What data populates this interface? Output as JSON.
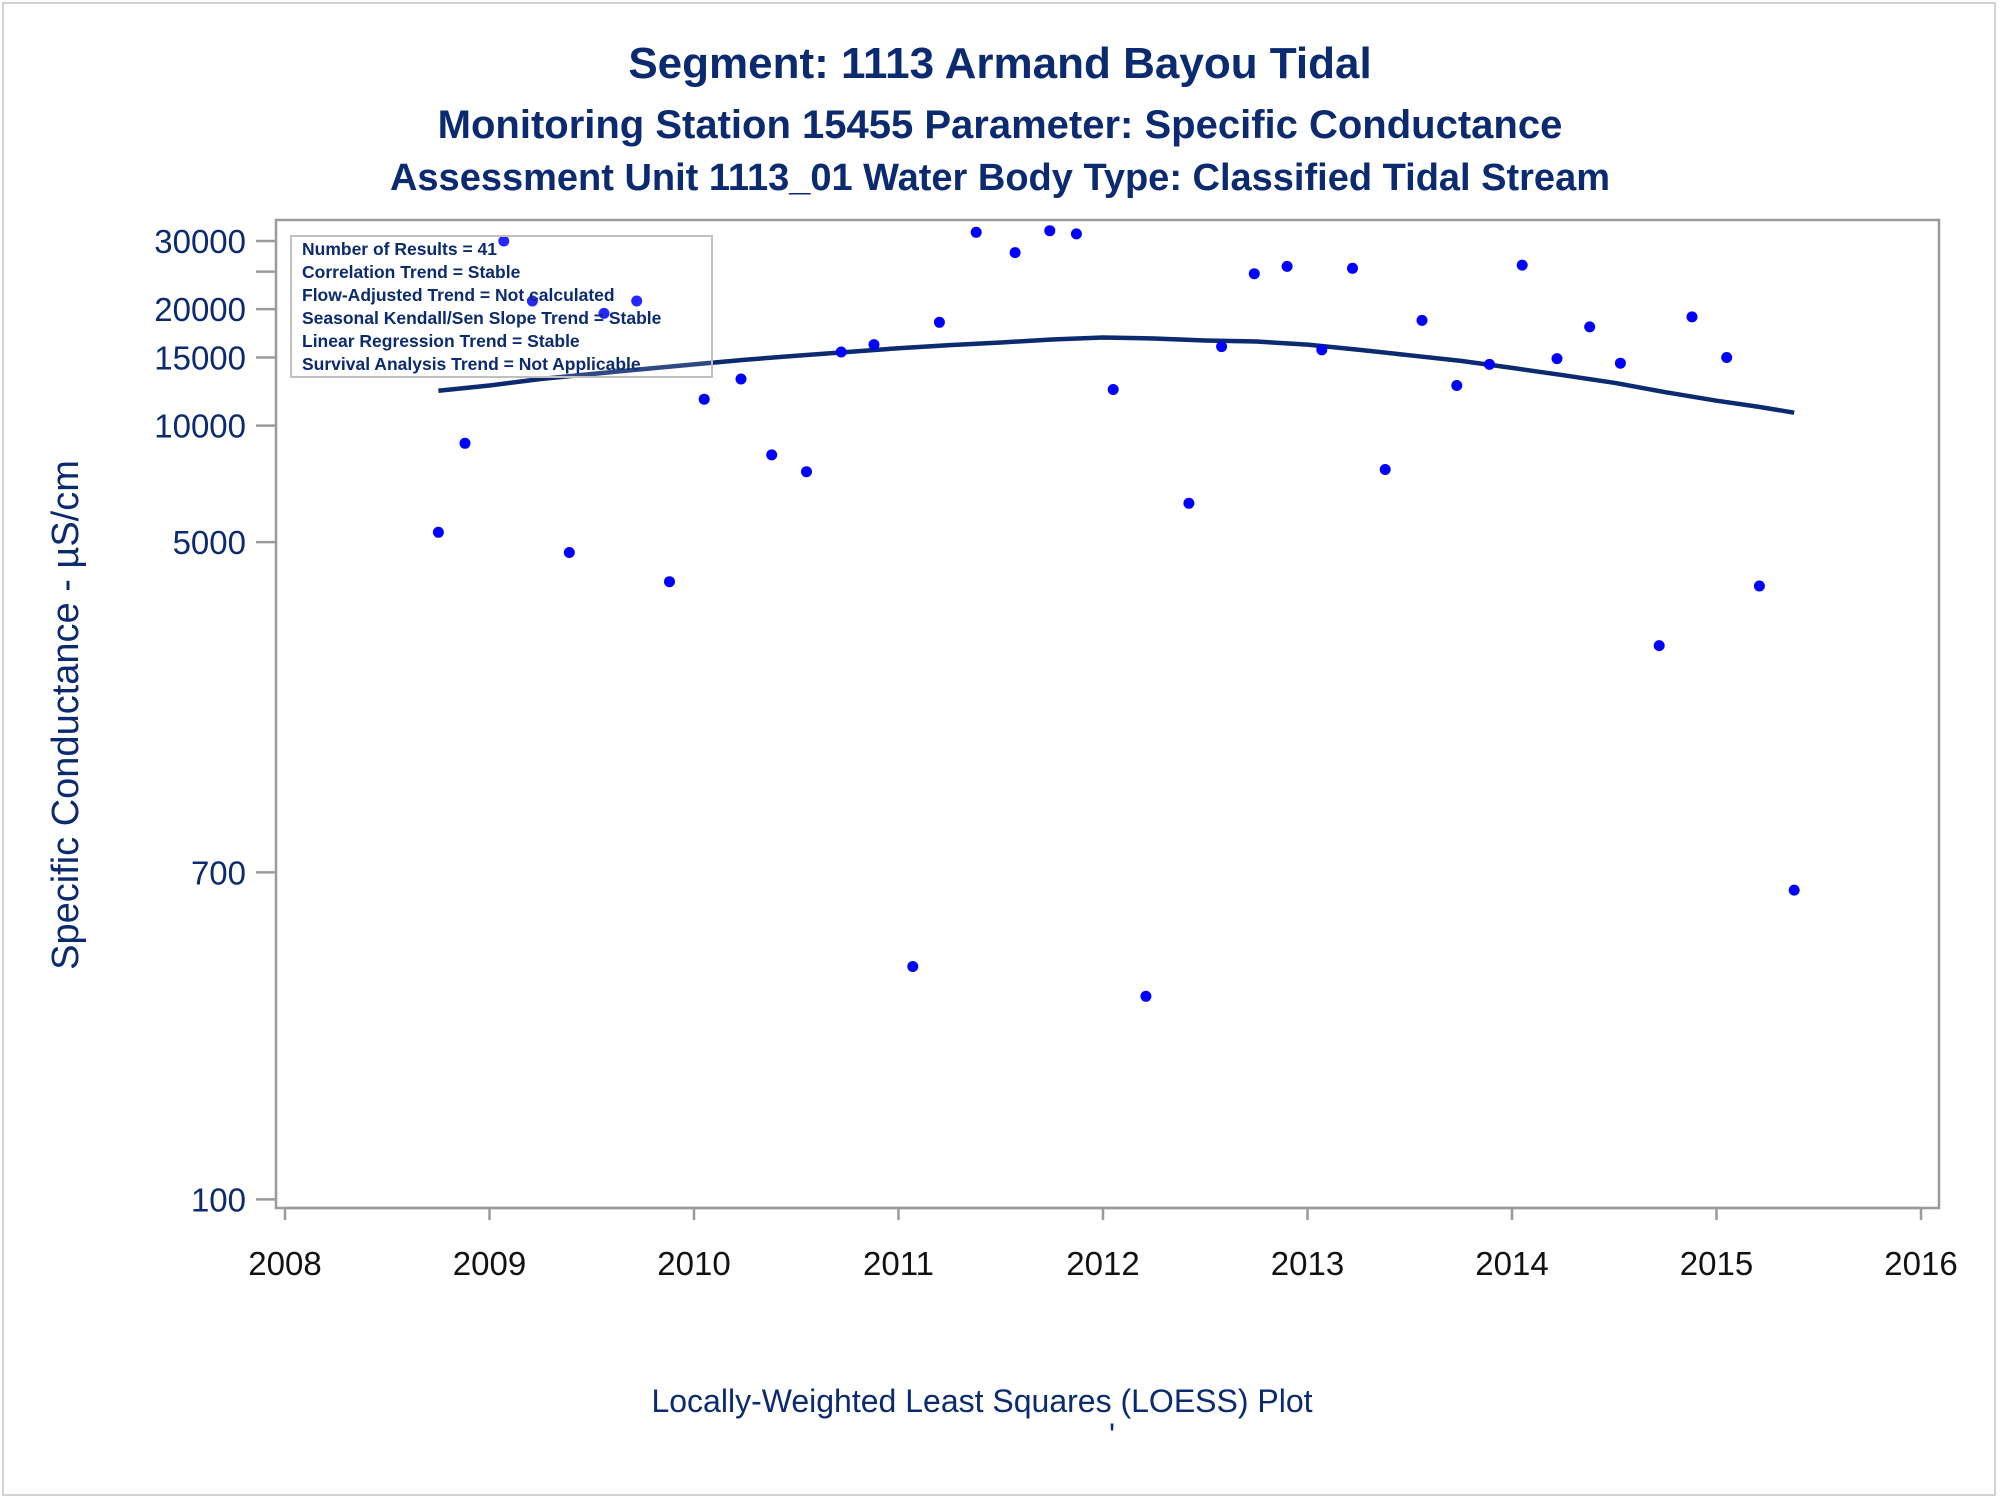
{
  "chart_data": {
    "type": "scatter",
    "title": "Segment: 1113  Armand Bayou Tidal",
    "subtitle": "Monitoring Station 15455 Parameter: Specific Conductance",
    "subtitle2": "Assessment Unit 1113_01   Water Body Type: Classified Tidal Stream",
    "ylabel": "Specific Conductance -  µS/cm",
    "xlabel": "",
    "footnote": "Locally-Weighted Least Squares (LOESS) Plot",
    "footnote_mark": "'",
    "y_scale": "log",
    "xlim": [
      2008,
      2016
    ],
    "ylim": [
      95,
      34000
    ],
    "x_ticks": [
      "2008",
      "2009",
      "2010",
      "2011",
      "2012",
      "2013",
      "2014",
      "2015",
      "2016"
    ],
    "y_ticks": [
      {
        "value": 30000,
        "label": "30000"
      },
      {
        "value": 20000,
        "label": "20000"
      },
      {
        "value": 15000,
        "label": "15000"
      },
      {
        "value": 10000,
        "label": "10000"
      },
      {
        "value": 5000,
        "label": "5000"
      },
      {
        "value": 700,
        "label": "700"
      },
      {
        "value": 100,
        "label": "100"
      }
    ],
    "y_minor_ticks": [
      25000
    ],
    "grid": false,
    "legend_position": "top-left",
    "legend_lines": [
      "Number of Results = 41",
      "Correlation Trend = Stable",
      "Flow-Adjusted Trend = Not calculated",
      "Seasonal Kendall/Sen Slope Trend = Stable",
      "Linear Regression Trend = Stable",
      "Survival Analysis Trend = Not Applicable"
    ],
    "series": [
      {
        "marker_color": "#0000ff",
        "x": [
          2008.75,
          2008.88,
          2009.07,
          2009.21,
          2009.39,
          2009.56,
          2009.72,
          2009.88,
          2010.05,
          2010.23,
          2010.38,
          2010.55,
          2010.72,
          2010.88,
          2011.07,
          2011.2,
          2011.38,
          2011.57,
          2011.74,
          2011.87,
          2012.05,
          2012.21,
          2012.42,
          2012.58,
          2012.74,
          2012.9,
          2013.07,
          2013.22,
          2013.38,
          2013.56,
          2013.73,
          2013.89,
          2014.05,
          2014.22,
          2014.38,
          2014.53,
          2014.72,
          2014.88,
          2015.05,
          2015.21,
          2015.38
        ],
        "y": [
          5300,
          9000,
          30000,
          21000,
          4700,
          19500,
          21000,
          3950,
          11700,
          13200,
          8400,
          7600,
          15500,
          16200,
          400,
          18500,
          31600,
          28000,
          31900,
          31300,
          12400,
          335,
          6300,
          16000,
          24700,
          25800,
          15700,
          25500,
          7700,
          18700,
          12700,
          14400,
          26000,
          14900,
          18000,
          14500,
          2700,
          19100,
          15000,
          3850,
          630
        ]
      },
      {
        "line_color": "#0b2a6f",
        "x": [
          2008.75,
          2009.0,
          2009.25,
          2009.5,
          2009.75,
          2010.0,
          2010.25,
          2010.5,
          2010.75,
          2011.0,
          2011.25,
          2011.5,
          2011.75,
          2012.0,
          2012.25,
          2012.5,
          2012.75,
          2013.0,
          2013.25,
          2013.5,
          2013.75,
          2014.0,
          2014.25,
          2014.5,
          2014.75,
          2015.0,
          2015.2,
          2015.38
        ],
        "y": [
          12300,
          12700,
          13200,
          13600,
          14000,
          14400,
          14800,
          15150,
          15500,
          15850,
          16150,
          16400,
          16700,
          16900,
          16800,
          16600,
          16500,
          16200,
          15700,
          15200,
          14700,
          14100,
          13500,
          12900,
          12200,
          11600,
          11200,
          10800
        ]
      }
    ]
  }
}
